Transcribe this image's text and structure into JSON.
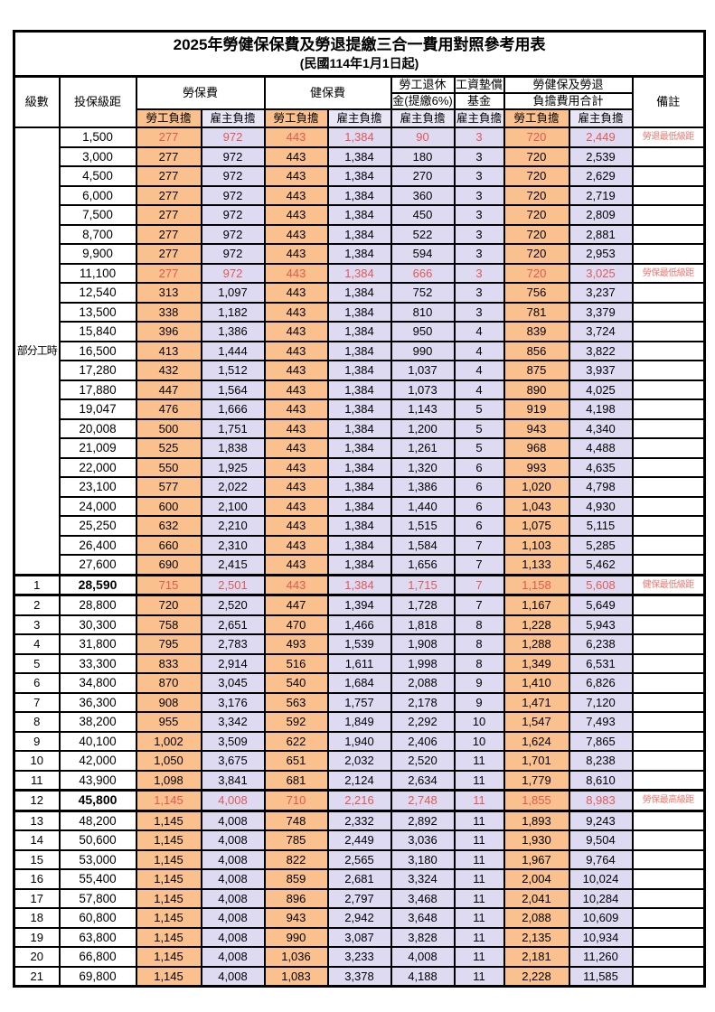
{
  "title": "2025年勞健保保費及勞退提繳三合一費用對照參考用表",
  "subtitle": "(民國114年1月1日起)",
  "header": {
    "level": "級數",
    "bracket": "投保級距",
    "labor_insurance": "勞保費",
    "health_insurance": "健保費",
    "pension_line1": "勞工退休",
    "pension_line2": "金(提繳6%)",
    "wage_fund_line1": "工資墊償",
    "wage_fund_line2": "基金",
    "total_line1": "勞健保及勞退",
    "total_line2": "負擔費用合計",
    "remark": "備註",
    "employee_burden": "勞工負擔",
    "employer_burden": "雇主負擔"
  },
  "part_time_label": "部分工時",
  "part_time_rowspan": 23,
  "colors": {
    "employee_fill": "#FAC18E",
    "employer_fill": "#DEDAF2",
    "employer_fill_header": "#E9E7F6",
    "highlight_red": "#E05A55",
    "remark_red": "#F4766E",
    "border": "#000000"
  },
  "rows": [
    {
      "level": "",
      "bracket": "1,500",
      "v": [
        "277",
        "972",
        "443",
        "1,384",
        "90",
        "3",
        "720",
        "2,449"
      ],
      "remark": "勞退最低級距"
    },
    {
      "level": "",
      "bracket": "3,000",
      "v": [
        "277",
        "972",
        "443",
        "1,384",
        "180",
        "3",
        "720",
        "2,539"
      ],
      "remark": ""
    },
    {
      "level": "",
      "bracket": "4,500",
      "v": [
        "277",
        "972",
        "443",
        "1,384",
        "270",
        "3",
        "720",
        "2,629"
      ],
      "remark": ""
    },
    {
      "level": "",
      "bracket": "6,000",
      "v": [
        "277",
        "972",
        "443",
        "1,384",
        "360",
        "3",
        "720",
        "2,719"
      ],
      "remark": ""
    },
    {
      "level": "",
      "bracket": "7,500",
      "v": [
        "277",
        "972",
        "443",
        "1,384",
        "450",
        "3",
        "720",
        "2,809"
      ],
      "remark": ""
    },
    {
      "level": "",
      "bracket": "8,700",
      "v": [
        "277",
        "972",
        "443",
        "1,384",
        "522",
        "3",
        "720",
        "2,881"
      ],
      "remark": ""
    },
    {
      "level": "",
      "bracket": "9,900",
      "v": [
        "277",
        "972",
        "443",
        "1,384",
        "594",
        "3",
        "720",
        "2,953"
      ],
      "remark": ""
    },
    {
      "level": "",
      "bracket": "11,100",
      "v": [
        "277",
        "972",
        "443",
        "1,384",
        "666",
        "3",
        "720",
        "3,025"
      ],
      "remark": "勞保最低級距"
    },
    {
      "level": "",
      "bracket": "12,540",
      "v": [
        "313",
        "1,097",
        "443",
        "1,384",
        "752",
        "3",
        "756",
        "3,237"
      ],
      "remark": ""
    },
    {
      "level": "",
      "bracket": "13,500",
      "v": [
        "338",
        "1,182",
        "443",
        "1,384",
        "810",
        "3",
        "781",
        "3,379"
      ],
      "remark": ""
    },
    {
      "level": "",
      "bracket": "15,840",
      "v": [
        "396",
        "1,386",
        "443",
        "1,384",
        "950",
        "4",
        "839",
        "3,724"
      ],
      "remark": ""
    },
    {
      "level": "",
      "bracket": "16,500",
      "v": [
        "413",
        "1,444",
        "443",
        "1,384",
        "990",
        "4",
        "856",
        "3,822"
      ],
      "remark": ""
    },
    {
      "level": "",
      "bracket": "17,280",
      "v": [
        "432",
        "1,512",
        "443",
        "1,384",
        "1,037",
        "4",
        "875",
        "3,937"
      ],
      "remark": ""
    },
    {
      "level": "",
      "bracket": "17,880",
      "v": [
        "447",
        "1,564",
        "443",
        "1,384",
        "1,073",
        "4",
        "890",
        "4,025"
      ],
      "remark": ""
    },
    {
      "level": "",
      "bracket": "19,047",
      "v": [
        "476",
        "1,666",
        "443",
        "1,384",
        "1,143",
        "5",
        "919",
        "4,198"
      ],
      "remark": ""
    },
    {
      "level": "",
      "bracket": "20,008",
      "v": [
        "500",
        "1,751",
        "443",
        "1,384",
        "1,200",
        "5",
        "943",
        "4,340"
      ],
      "remark": ""
    },
    {
      "level": "",
      "bracket": "21,009",
      "v": [
        "525",
        "1,838",
        "443",
        "1,384",
        "1,261",
        "5",
        "968",
        "4,488"
      ],
      "remark": ""
    },
    {
      "level": "",
      "bracket": "22,000",
      "v": [
        "550",
        "1,925",
        "443",
        "1,384",
        "1,320",
        "6",
        "993",
        "4,635"
      ],
      "remark": ""
    },
    {
      "level": "",
      "bracket": "23,100",
      "v": [
        "577",
        "2,022",
        "443",
        "1,384",
        "1,386",
        "6",
        "1,020",
        "4,798"
      ],
      "remark": ""
    },
    {
      "level": "",
      "bracket": "24,000",
      "v": [
        "600",
        "2,100",
        "443",
        "1,384",
        "1,440",
        "6",
        "1,043",
        "4,930"
      ],
      "remark": ""
    },
    {
      "level": "",
      "bracket": "25,250",
      "v": [
        "632",
        "2,210",
        "443",
        "1,384",
        "1,515",
        "6",
        "1,075",
        "5,115"
      ],
      "remark": ""
    },
    {
      "level": "",
      "bracket": "26,400",
      "v": [
        "660",
        "2,310",
        "443",
        "1,384",
        "1,584",
        "7",
        "1,103",
        "5,285"
      ],
      "remark": ""
    },
    {
      "level": "",
      "bracket": "27,600",
      "v": [
        "690",
        "2,415",
        "443",
        "1,384",
        "1,656",
        "7",
        "1,133",
        "5,462"
      ],
      "remark": ""
    },
    {
      "level": "1",
      "bracket": "28,590",
      "v": [
        "715",
        "2,501",
        "443",
        "1,384",
        "1,715",
        "7",
        "1,158",
        "5,608"
      ],
      "remark": "健保最低級距"
    },
    {
      "level": "2",
      "bracket": "28,800",
      "v": [
        "720",
        "2,520",
        "447",
        "1,394",
        "1,728",
        "7",
        "1,167",
        "5,649"
      ],
      "remark": ""
    },
    {
      "level": "3",
      "bracket": "30,300",
      "v": [
        "758",
        "2,651",
        "470",
        "1,466",
        "1,818",
        "8",
        "1,228",
        "5,943"
      ],
      "remark": ""
    },
    {
      "level": "4",
      "bracket": "31,800",
      "v": [
        "795",
        "2,783",
        "493",
        "1,539",
        "1,908",
        "8",
        "1,288",
        "6,238"
      ],
      "remark": ""
    },
    {
      "level": "5",
      "bracket": "33,300",
      "v": [
        "833",
        "2,914",
        "516",
        "1,611",
        "1,998",
        "8",
        "1,349",
        "6,531"
      ],
      "remark": ""
    },
    {
      "level": "6",
      "bracket": "34,800",
      "v": [
        "870",
        "3,045",
        "540",
        "1,684",
        "2,088",
        "9",
        "1,410",
        "6,826"
      ],
      "remark": ""
    },
    {
      "level": "7",
      "bracket": "36,300",
      "v": [
        "908",
        "3,176",
        "563",
        "1,757",
        "2,178",
        "9",
        "1,471",
        "7,120"
      ],
      "remark": ""
    },
    {
      "level": "8",
      "bracket": "38,200",
      "v": [
        "955",
        "3,342",
        "592",
        "1,849",
        "2,292",
        "10",
        "1,547",
        "7,493"
      ],
      "remark": ""
    },
    {
      "level": "9",
      "bracket": "40,100",
      "v": [
        "1,002",
        "3,509",
        "622",
        "1,940",
        "2,406",
        "10",
        "1,624",
        "7,865"
      ],
      "remark": ""
    },
    {
      "level": "10",
      "bracket": "42,000",
      "v": [
        "1,050",
        "3,675",
        "651",
        "2,032",
        "2,520",
        "11",
        "1,701",
        "8,238"
      ],
      "remark": ""
    },
    {
      "level": "11",
      "bracket": "43,900",
      "v": [
        "1,098",
        "3,841",
        "681",
        "2,124",
        "2,634",
        "11",
        "1,779",
        "8,610"
      ],
      "remark": ""
    },
    {
      "level": "12",
      "bracket": "45,800",
      "v": [
        "1,145",
        "4,008",
        "710",
        "2,216",
        "2,748",
        "11",
        "1,855",
        "8,983"
      ],
      "remark": "勞保最高級距"
    },
    {
      "level": "13",
      "bracket": "48,200",
      "v": [
        "1,145",
        "4,008",
        "748",
        "2,332",
        "2,892",
        "11",
        "1,893",
        "9,243"
      ],
      "remark": ""
    },
    {
      "level": "14",
      "bracket": "50,600",
      "v": [
        "1,145",
        "4,008",
        "785",
        "2,449",
        "3,036",
        "11",
        "1,930",
        "9,504"
      ],
      "remark": ""
    },
    {
      "level": "15",
      "bracket": "53,000",
      "v": [
        "1,145",
        "4,008",
        "822",
        "2,565",
        "3,180",
        "11",
        "1,967",
        "9,764"
      ],
      "remark": ""
    },
    {
      "level": "16",
      "bracket": "55,400",
      "v": [
        "1,145",
        "4,008",
        "859",
        "2,681",
        "3,324",
        "11",
        "2,004",
        "10,024"
      ],
      "remark": ""
    },
    {
      "level": "17",
      "bracket": "57,800",
      "v": [
        "1,145",
        "4,008",
        "896",
        "2,797",
        "3,468",
        "11",
        "2,041",
        "10,284"
      ],
      "remark": ""
    },
    {
      "level": "18",
      "bracket": "60,800",
      "v": [
        "1,145",
        "4,008",
        "943",
        "2,942",
        "3,648",
        "11",
        "2,088",
        "10,609"
      ],
      "remark": ""
    },
    {
      "level": "19",
      "bracket": "63,800",
      "v": [
        "1,145",
        "4,008",
        "990",
        "3,087",
        "3,828",
        "11",
        "2,135",
        "10,934"
      ],
      "remark": ""
    },
    {
      "level": "20",
      "bracket": "66,800",
      "v": [
        "1,145",
        "4,008",
        "1,036",
        "3,233",
        "4,008",
        "11",
        "2,181",
        "11,260"
      ],
      "remark": ""
    },
    {
      "level": "21",
      "bracket": "69,800",
      "v": [
        "1,145",
        "4,008",
        "1,083",
        "3,378",
        "4,188",
        "11",
        "2,228",
        "11,585"
      ],
      "remark": ""
    }
  ]
}
